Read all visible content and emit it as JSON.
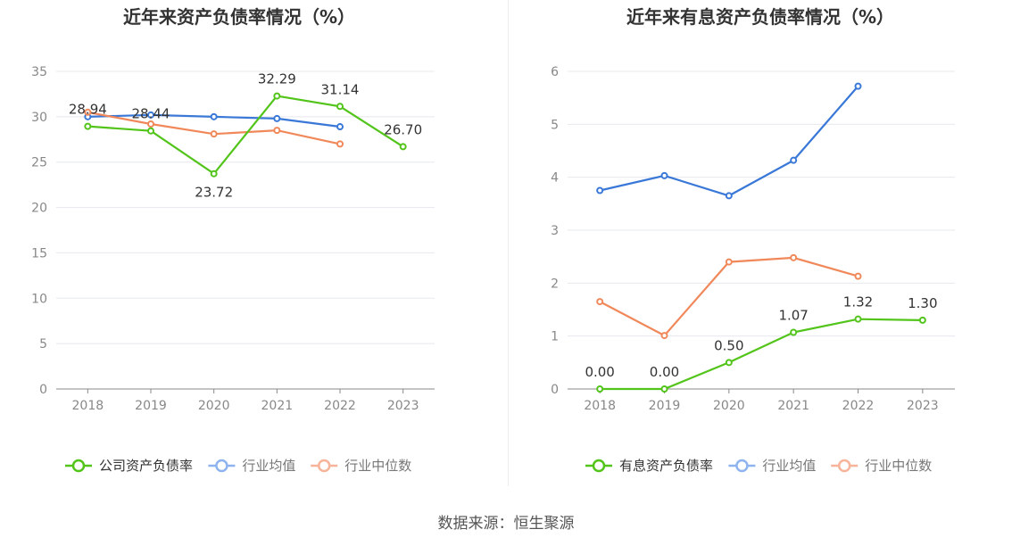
{
  "chart_data": [
    {
      "type": "line",
      "title": "近年来资产负债率情况（%）",
      "categories": [
        "2018",
        "2019",
        "2020",
        "2021",
        "2022",
        "2023"
      ],
      "ylim": [
        0,
        35
      ],
      "yticks": [
        0,
        5,
        10,
        15,
        20,
        25,
        30,
        35
      ],
      "grid": true,
      "legend_position": "bottom",
      "series": [
        {
          "name": "公司资产负债率",
          "color": "#52c41a",
          "values": [
            28.94,
            28.44,
            23.72,
            32.29,
            31.14,
            26.7
          ],
          "labels": [
            "28.94",
            "28.44",
            "23.72",
            "32.29",
            "31.14",
            "26.70"
          ]
        },
        {
          "name": "行业均值",
          "color": "#3a78d8",
          "values": [
            30.0,
            30.2,
            30.0,
            29.8,
            28.9,
            null
          ]
        },
        {
          "name": "行业中位数",
          "color": "#f0885a",
          "values": [
            30.5,
            29.2,
            28.1,
            28.5,
            27.0,
            null
          ]
        }
      ]
    },
    {
      "type": "line",
      "title": "近年来有息资产负债率情况（%）",
      "categories": [
        "2018",
        "2019",
        "2020",
        "2021",
        "2022",
        "2023"
      ],
      "ylim": [
        0,
        6
      ],
      "yticks": [
        0,
        1,
        2,
        3,
        4,
        5,
        6
      ],
      "grid": true,
      "legend_position": "bottom",
      "series": [
        {
          "name": "有息资产负债率",
          "color": "#52c41a",
          "values": [
            0.0,
            0.0,
            0.5,
            1.07,
            1.32,
            1.3
          ],
          "labels": [
            "0.00",
            "0.00",
            "0.50",
            "1.07",
            "1.32",
            "1.30"
          ]
        },
        {
          "name": "行业均值",
          "color": "#3a78d8",
          "values": [
            3.75,
            4.03,
            3.65,
            4.32,
            5.72,
            null
          ]
        },
        {
          "name": "行业中位数",
          "color": "#f0885a",
          "values": [
            1.65,
            1.01,
            2.4,
            2.48,
            2.13,
            null
          ]
        }
      ]
    }
  ],
  "source": "数据来源：恒生聚源",
  "legend_marker_colors": [
    "#52c41a",
    "#8fb3ee",
    "#f7b49a"
  ]
}
